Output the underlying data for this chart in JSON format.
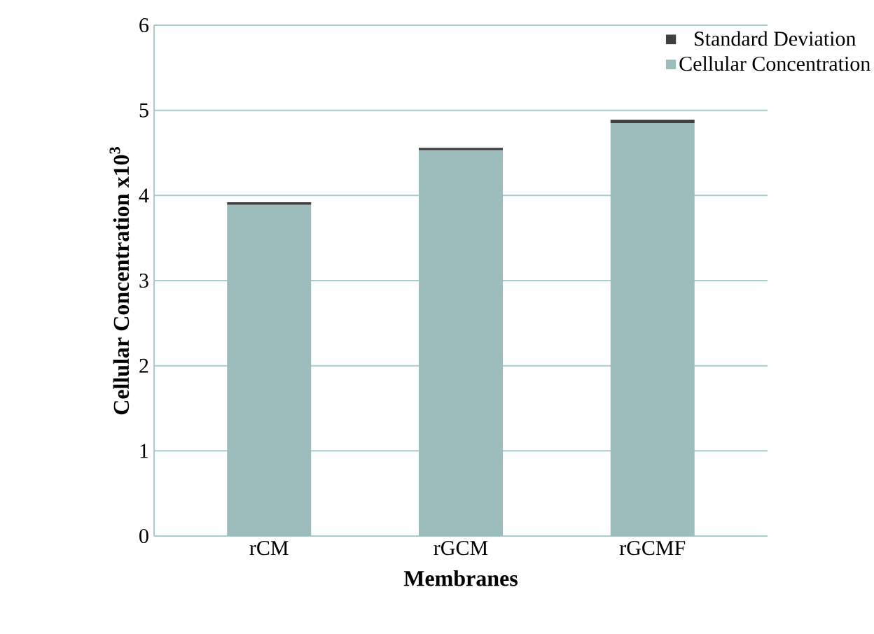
{
  "chart_data": {
    "type": "bar",
    "stacked": true,
    "xlabel": "Membranes",
    "ylabel": "Cellular Concentration x10$^{3}$",
    "categories": [
      "rCM",
      "rGCM",
      "rGCMF"
    ],
    "series": [
      {
        "name": "Cellular Concentration",
        "color": "#9dbdbd",
        "values": [
          3.89,
          4.53,
          4.85
        ]
      },
      {
        "name": "Standard Deviation",
        "color": "#404040",
        "values": [
          0.03,
          0.03,
          0.04
        ]
      }
    ],
    "ylim": [
      0,
      6
    ],
    "yticks": [
      0,
      1,
      2,
      3,
      4,
      5,
      6
    ],
    "grid": "y",
    "legend": "top right"
  }
}
